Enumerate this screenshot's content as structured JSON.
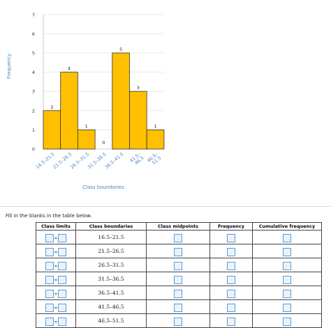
{
  "chart_data": {
    "type": "bar",
    "categories": [
      "16.5–21.5",
      "21.5–26.5",
      "26.5–31.5",
      "31.5–36.5",
      "36.5–41.5",
      "41.5–46.5",
      "46.5–51.5"
    ],
    "values": [
      2,
      4,
      1,
      0,
      5,
      3,
      1
    ],
    "data_labels": [
      "2",
      "4",
      "1",
      "0",
      "5",
      "3",
      "1"
    ],
    "xlabel": "Class boundaries",
    "ylabel": "Frequency",
    "ylim": [
      0,
      7
    ],
    "yticks": [
      "0",
      "1",
      "2",
      "3",
      "4",
      "5",
      "6",
      "7"
    ],
    "grid": true,
    "bar_color": "#ffc000",
    "bar_edge_color": "#333333"
  },
  "instruction": "Fill in the blanks in the table below.",
  "table": {
    "headers": [
      "Class limits",
      "Class boundaries",
      "Class midpoints",
      "Frequency",
      "Cumulative frequency"
    ],
    "class_boundaries": [
      "16.5–21.5",
      "21.5–26.5",
      "26.5–31.5",
      "31.5–36.5",
      "36.5–41.5",
      "41.5–46.5",
      "46.5–51.5"
    ],
    "limit_separator": "–"
  }
}
